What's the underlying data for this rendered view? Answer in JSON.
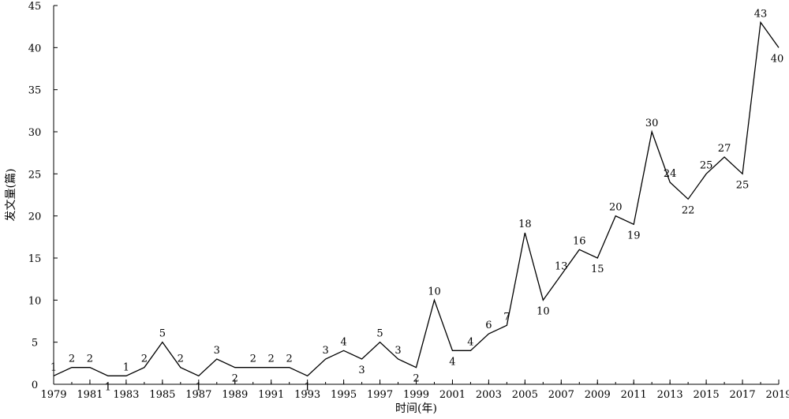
{
  "chart_data": {
    "type": "line",
    "title": "",
    "xlabel": "时间(年)",
    "ylabel": "发文量(篇)",
    "x": [
      1979,
      1980,
      1981,
      1982,
      1983,
      1984,
      1985,
      1986,
      1987,
      1988,
      1989,
      1990,
      1991,
      1992,
      1993,
      1994,
      1995,
      1996,
      1997,
      1998,
      1999,
      2000,
      2001,
      2002,
      2003,
      2004,
      2005,
      2006,
      2007,
      2008,
      2009,
      2010,
      2011,
      2012,
      2013,
      2014,
      2015,
      2016,
      2017,
      2018,
      2019
    ],
    "values": [
      1,
      2,
      2,
      1,
      1,
      2,
      5,
      2,
      1,
      3,
      2,
      2,
      2,
      2,
      1,
      3,
      4,
      3,
      5,
      3,
      2,
      10,
      4,
      4,
      6,
      7,
      18,
      10,
      13,
      16,
      15,
      20,
      19,
      30,
      24,
      22,
      25,
      27,
      25,
      43,
      40
    ],
    "xticks": [
      "1979",
      "1981",
      "1983",
      "1985",
      "1987",
      "1989",
      "1991",
      "1993",
      "1995",
      "1997",
      "1999",
      "2001",
      "2003",
      "2005",
      "2007",
      "2009",
      "2011",
      "2013",
      "2015",
      "2017",
      "2019"
    ],
    "yticks": [
      "0",
      "5",
      "10",
      "15",
      "20",
      "25",
      "30",
      "35",
      "40",
      "45"
    ],
    "xlim": [
      1979,
      2019
    ],
    "ylim": [
      0,
      45
    ],
    "grid": false,
    "line_color": "#000000"
  }
}
